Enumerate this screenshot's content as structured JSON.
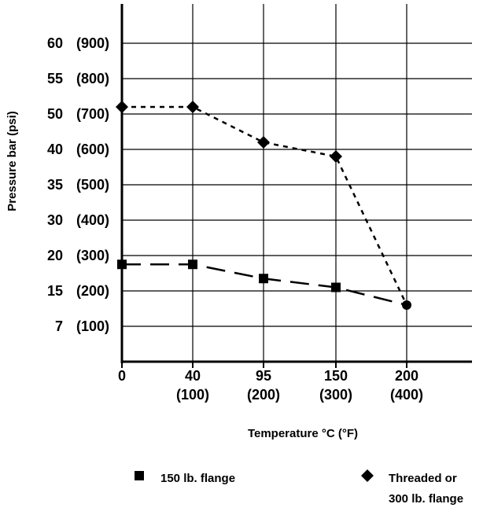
{
  "chart_data": {
    "type": "line",
    "title": "",
    "xlabel": "Temperature °C (°F)",
    "ylabel": "Pressure bar (psi)",
    "x_ticks": [
      {
        "c": "0",
        "f": ""
      },
      {
        "c": "40",
        "f": "(100)"
      },
      {
        "c": "95",
        "f": "(200)"
      },
      {
        "c": "150",
        "f": "(300)"
      },
      {
        "c": "200",
        "f": "(400)"
      }
    ],
    "y_ticks": [
      {
        "bar": "60",
        "psi": "(900)"
      },
      {
        "bar": "55",
        "psi": "(800)"
      },
      {
        "bar": "50",
        "psi": "(700)"
      },
      {
        "bar": "40",
        "psi": "(600)"
      },
      {
        "bar": "35",
        "psi": "(500)"
      },
      {
        "bar": "30",
        "psi": "(400)"
      },
      {
        "bar": "20",
        "psi": "(300)"
      },
      {
        "bar": "15",
        "psi": "(200)"
      },
      {
        "bar": "7",
        "psi": "(100)"
      }
    ],
    "ylim_psi": [
      0,
      900
    ],
    "grid": true,
    "series": [
      {
        "name": "150 lb. flange",
        "marker": "square",
        "dash": "long",
        "points": [
          {
            "x_index": 0,
            "psi": 275
          },
          {
            "x_index": 1,
            "psi": 275
          },
          {
            "x_index": 2,
            "psi": 235
          },
          {
            "x_index": 3,
            "psi": 210
          },
          {
            "x_index": 4,
            "psi": 160
          }
        ]
      },
      {
        "name": "Threaded or 300 lb. flange",
        "marker": "diamond",
        "dash": "short",
        "points": [
          {
            "x_index": 0,
            "psi": 720
          },
          {
            "x_index": 1,
            "psi": 720
          },
          {
            "x_index": 2,
            "psi": 620
          },
          {
            "x_index": 3,
            "psi": 580
          },
          {
            "x_index": 4,
            "psi": 160
          }
        ]
      }
    ],
    "end_point": {
      "x_index": 4,
      "psi": 160,
      "marker": "circle"
    },
    "legend": {
      "placement": "bottom",
      "items": [
        {
          "marker": "square",
          "lines": [
            "150 lb. flange"
          ]
        },
        {
          "marker": "diamond",
          "lines": [
            "Threaded or",
            "300 lb. flange"
          ]
        }
      ]
    }
  }
}
